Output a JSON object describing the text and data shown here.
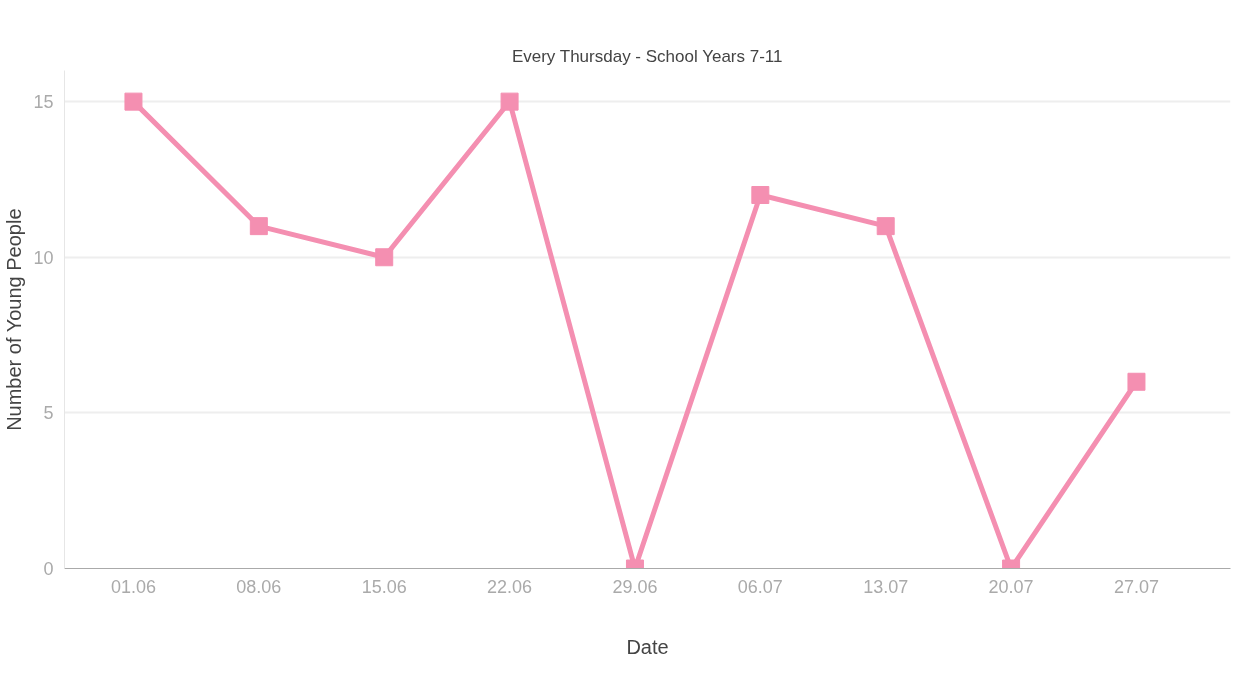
{
  "chart_data": {
    "type": "line",
    "title": "Every Thursday - School Years 7-11",
    "xlabel": "Date",
    "ylabel": "Number of Young People",
    "categories": [
      "01.06",
      "08.06",
      "15.06",
      "22.06",
      "29.06",
      "06.07",
      "13.07",
      "20.07",
      "27.07"
    ],
    "series": [
      {
        "color": "#f48fb1",
        "values": [
          15,
          11,
          10,
          15,
          0,
          12,
          11,
          0,
          6
        ]
      }
    ],
    "ylim": [
      0,
      16
    ],
    "yticks": [
      0,
      5,
      10,
      15
    ],
    "grid": "y",
    "marker": "square",
    "line_style": "solid"
  }
}
